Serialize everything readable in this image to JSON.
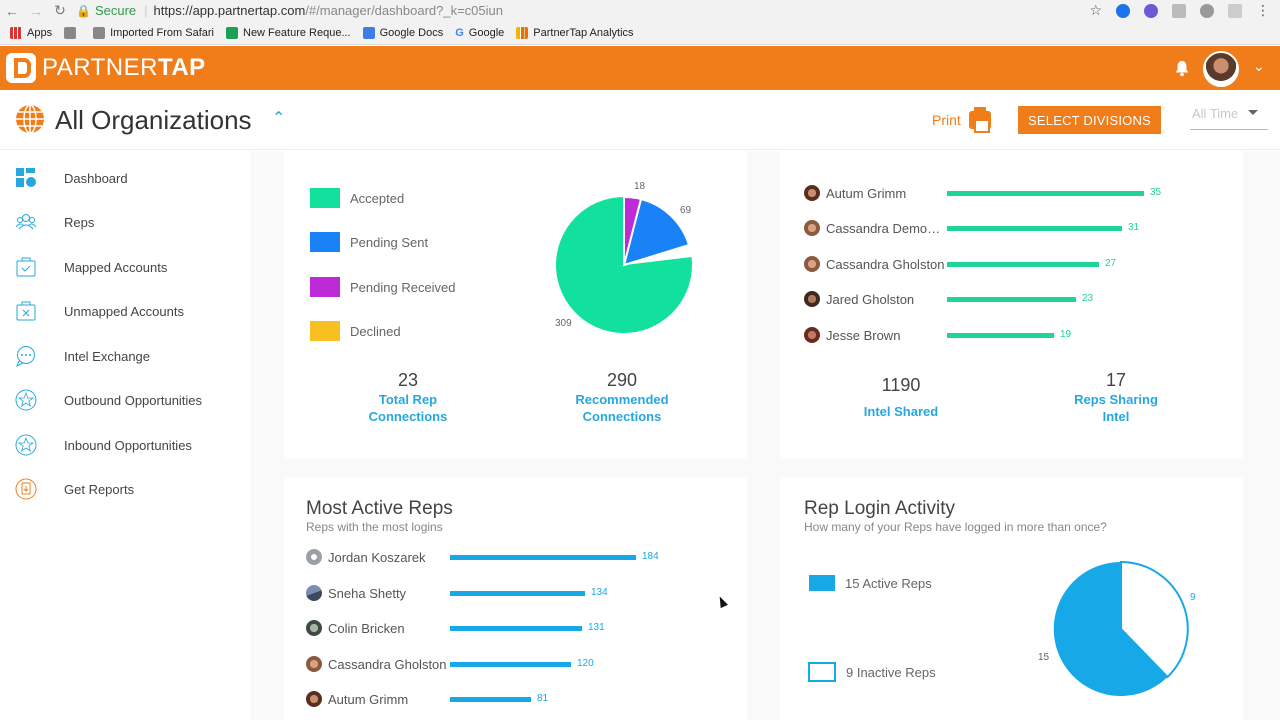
{
  "browser": {
    "secure_label": "Secure",
    "url_host": "https://app.partnertap.com",
    "url_path": "/#/manager/dashboard?_k=c05iun",
    "bookmarks": [
      "Apps",
      "",
      "Imported From Safari",
      "New Feature Reque...",
      "Google Docs",
      "Google",
      "PartnerTap Analytics"
    ]
  },
  "header": {
    "brand_light": "PARTNER",
    "brand_bold": "TAP"
  },
  "subheader": {
    "title": "All Organizations",
    "print_label": "Print",
    "select_divisions_label": "SELECT DIVISIONS",
    "time_filter": "All Time"
  },
  "sidebar": {
    "items": [
      {
        "label": "Dashboard"
      },
      {
        "label": "Reps"
      },
      {
        "label": "Mapped Accounts"
      },
      {
        "label": "Unmapped Accounts"
      },
      {
        "label": "Intel Exchange"
      },
      {
        "label": "Outbound Opportunities"
      },
      {
        "label": "Inbound Opportunities"
      },
      {
        "label": "Get Reports"
      }
    ]
  },
  "connections_card": {
    "legend": [
      {
        "label": "Accepted",
        "color": "#12e09d"
      },
      {
        "label": "Pending Sent",
        "color": "#1a82f7"
      },
      {
        "label": "Pending Received",
        "color": "#bd2bd6"
      },
      {
        "label": "Declined",
        "color": "#f8c021"
      }
    ],
    "pie_labels": {
      "pending_received": "18",
      "pending_sent": "69",
      "accepted": "309"
    },
    "stats": [
      {
        "value": "23",
        "label_line1": "Total Rep",
        "label_line2": "Connections"
      },
      {
        "value": "290",
        "label_line1": "Recommended",
        "label_line2": "Connections"
      }
    ]
  },
  "intel_card": {
    "reps": [
      {
        "name": "Autum Grimm",
        "value": "35"
      },
      {
        "name": "Cassandra Demo…",
        "value": "31"
      },
      {
        "name": "Cassandra Gholston",
        "value": "27"
      },
      {
        "name": "Jared Gholston",
        "value": "23"
      },
      {
        "name": "Jesse Brown",
        "value": "19"
      }
    ],
    "stats": [
      {
        "value": "1190",
        "label_line1": "Intel Shared",
        "label_line2": ""
      },
      {
        "value": "17",
        "label_line1": "Reps Sharing",
        "label_line2": "Intel"
      }
    ]
  },
  "most_active": {
    "title": "Most Active Reps",
    "subtitle": "Reps with the most logins",
    "reps": [
      {
        "name": "Jordan Koszarek",
        "value": "184"
      },
      {
        "name": "Sneha Shetty",
        "value": "134"
      },
      {
        "name": "Colin Bricken",
        "value": "131"
      },
      {
        "name": "Cassandra Gholston",
        "value": "120"
      },
      {
        "name": "Autum Grimm",
        "value": "81"
      }
    ]
  },
  "login_activity": {
    "title": "Rep Login Activity",
    "subtitle": "How many of your Reps have logged in more than once?",
    "legend": [
      {
        "label": "15 Active Reps"
      },
      {
        "label": "9 Inactive Reps"
      }
    ],
    "pie_labels": {
      "inactive": "9",
      "active": "15"
    }
  },
  "colors": {
    "brand": "#f07d1a",
    "accent": "#26a8de",
    "green_bar": "#1fd39a",
    "blue_bar": "#17a8e8"
  }
}
